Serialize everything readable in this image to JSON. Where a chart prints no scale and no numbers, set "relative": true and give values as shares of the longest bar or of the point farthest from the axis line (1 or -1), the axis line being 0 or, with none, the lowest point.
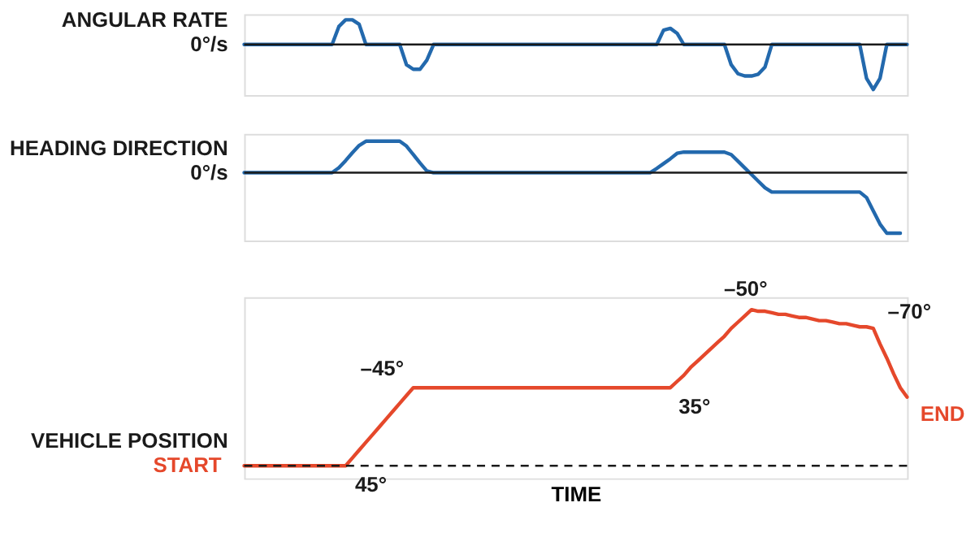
{
  "chart_data": [
    {
      "type": "line",
      "relative": true,
      "ylabel": "ANGULAR RATE",
      "color": "#2369ad",
      "tick_labels": false,
      "categories": [
        null,
        null,
        null,
        null,
        null,
        null,
        null,
        null,
        null,
        null,
        null,
        null,
        null,
        null,
        null,
        null,
        null,
        null,
        null,
        null,
        null,
        null,
        null,
        null,
        null,
        null,
        null,
        null,
        null,
        null,
        null,
        null,
        null,
        null,
        null,
        null,
        null,
        null,
        null,
        null,
        null,
        null,
        null,
        null,
        null,
        null,
        null,
        null,
        null,
        null,
        null,
        null,
        null,
        null,
        null,
        null,
        null,
        null,
        null,
        null,
        null,
        null,
        null,
        null,
        null,
        null,
        null,
        null,
        null,
        null,
        null,
        null,
        null,
        null,
        null,
        null,
        null,
        null,
        null,
        null,
        null,
        null,
        null,
        null,
        null,
        null,
        null,
        null,
        null,
        null,
        null,
        null,
        null,
        null,
        null,
        null,
        null,
        null,
        null
      ],
      "values": [
        0,
        0,
        0,
        0,
        0,
        0,
        0,
        0,
        0,
        0,
        0,
        0,
        0,
        0,
        0.4,
        0.55,
        0.55,
        0.45,
        0,
        0,
        0,
        0,
        0,
        0,
        -0.45,
        -0.55,
        -0.55,
        -0.35,
        0,
        0,
        0,
        0,
        0,
        0,
        0,
        0,
        0,
        0,
        0,
        0,
        0,
        0,
        0,
        0,
        0,
        0,
        0,
        0,
        0,
        0,
        0,
        0,
        0,
        0,
        0,
        0,
        0,
        0,
        0,
        0,
        0,
        0,
        0.32,
        0.36,
        0.25,
        0,
        0,
        0,
        0,
        0,
        0,
        0,
        -0.45,
        -0.65,
        -0.7,
        -0.7,
        -0.66,
        -0.5,
        0,
        0,
        0,
        0,
        0,
        0,
        0,
        0,
        0,
        0,
        0,
        0,
        0,
        0,
        -0.75,
        -1,
        -0.75,
        0,
        0,
        0,
        0
      ],
      "ref_lines": [
        {
          "axis": "y",
          "value": 0,
          "label": "0°/s",
          "color": "#1a1a1a",
          "line_style": "solid"
        }
      ]
    },
    {
      "type": "line",
      "relative": true,
      "ylabel": "HEADING DIRECTION",
      "color": "#2369ad",
      "tick_labels": false,
      "categories": [
        null,
        null,
        null,
        null,
        null,
        null,
        null,
        null,
        null,
        null,
        null,
        null,
        null,
        null,
        null,
        null,
        null,
        null,
        null,
        null,
        null,
        null,
        null,
        null,
        null,
        null,
        null,
        null,
        null,
        null,
        null,
        null,
        null,
        null,
        null,
        null,
        null,
        null,
        null,
        null,
        null,
        null,
        null,
        null,
        null,
        null,
        null,
        null,
        null,
        null,
        null,
        null,
        null,
        null,
        null,
        null,
        null,
        null,
        null,
        null,
        null,
        null,
        null,
        null,
        null,
        null,
        null,
        null,
        null,
        null,
        null,
        null,
        null,
        null,
        null,
        null,
        null,
        null,
        null,
        null,
        null,
        null,
        null,
        null,
        null,
        null,
        null,
        null,
        null,
        null,
        null,
        null,
        null,
        null,
        null,
        null,
        null,
        null,
        null
      ],
      "values": [
        0,
        0,
        0,
        0,
        0,
        0,
        0,
        0,
        0,
        0,
        0,
        0,
        0,
        0,
        0.08,
        0.2,
        0.33,
        0.45,
        0.52,
        0.52,
        0.52,
        0.52,
        0.52,
        0.52,
        0.44,
        0.3,
        0.16,
        0.03,
        0,
        0,
        0,
        0,
        0,
        0,
        0,
        0,
        0,
        0,
        0,
        0,
        0,
        0,
        0,
        0,
        0,
        0,
        0,
        0,
        0,
        0,
        0,
        0,
        0,
        0,
        0,
        0,
        0,
        0,
        0,
        0,
        0,
        0.07,
        0.15,
        0.23,
        0.32,
        0.34,
        0.34,
        0.34,
        0.34,
        0.34,
        0.34,
        0.34,
        0.3,
        0.19,
        0.08,
        -0.03,
        -0.14,
        -0.25,
        -0.32,
        -0.32,
        -0.32,
        -0.32,
        -0.32,
        -0.32,
        -0.32,
        -0.32,
        -0.32,
        -0.32,
        -0.32,
        -0.32,
        -0.32,
        -0.32,
        -0.41,
        -0.63,
        -0.85,
        -1,
        -1,
        -1,
        null
      ],
      "ref_lines": [
        {
          "axis": "y",
          "value": 0,
          "label": "0°/s",
          "color": "#1a1a1a",
          "line_style": "solid"
        }
      ]
    },
    {
      "type": "line",
      "relative": true,
      "ylabel": "VEHICLE POSITION",
      "xlabel": "TIME",
      "color": "#e5482b",
      "tick_labels": false,
      "categories": [
        null,
        null,
        null,
        null,
        null,
        null,
        null,
        null,
        null,
        null,
        null,
        null,
        null,
        null,
        null,
        null,
        null,
        null,
        null,
        null,
        null,
        null,
        null,
        null,
        null,
        null,
        null,
        null,
        null,
        null,
        null,
        null,
        null,
        null,
        null,
        null,
        null,
        null,
        null,
        null,
        null,
        null,
        null,
        null,
        null,
        null,
        null,
        null,
        null,
        null,
        null,
        null,
        null,
        null,
        null,
        null,
        null,
        null,
        null,
        null,
        null,
        null,
        null,
        null,
        null,
        null,
        null,
        null,
        null,
        null,
        null,
        null,
        null,
        null,
        null,
        null,
        null,
        null,
        null,
        null,
        null,
        null,
        null,
        null,
        null,
        null,
        null,
        null,
        null,
        null,
        null,
        null,
        null,
        null,
        null,
        null,
        null,
        null,
        null
      ],
      "values": [
        0,
        0,
        0,
        0,
        0,
        0,
        0,
        0,
        0,
        0,
        0,
        0,
        0,
        0,
        0,
        0,
        0.05,
        0.1,
        0.15,
        0.2,
        0.25,
        0.3,
        0.35,
        0.4,
        0.45,
        0.5,
        0.5,
        0.5,
        0.5,
        0.5,
        0.5,
        0.5,
        0.5,
        0.5,
        0.5,
        0.5,
        0.5,
        0.5,
        0.5,
        0.5,
        0.5,
        0.5,
        0.5,
        0.5,
        0.5,
        0.5,
        0.5,
        0.5,
        0.5,
        0.5,
        0.5,
        0.5,
        0.5,
        0.5,
        0.5,
        0.5,
        0.5,
        0.5,
        0.5,
        0.5,
        0.5,
        0.5,
        0.5,
        0.5,
        0.54,
        0.58,
        0.63,
        0.67,
        0.71,
        0.75,
        0.79,
        0.83,
        0.88,
        0.92,
        0.96,
        1,
        0.99,
        0.99,
        0.98,
        0.97,
        0.97,
        0.96,
        0.95,
        0.95,
        0.94,
        0.93,
        0.93,
        0.92,
        0.91,
        0.91,
        0.9,
        0.89,
        0.89,
        0.88,
        0.78,
        0.69,
        0.59,
        0.5,
        0.44
      ],
      "annotations": [
        "START",
        "45°",
        "–45°",
        "35°",
        "–50°",
        "–70°",
        "END"
      ],
      "ref_lines": [
        {
          "axis": "y",
          "value": 0,
          "color": "#1a1a1a",
          "line_style": "dashed"
        }
      ]
    }
  ]
}
